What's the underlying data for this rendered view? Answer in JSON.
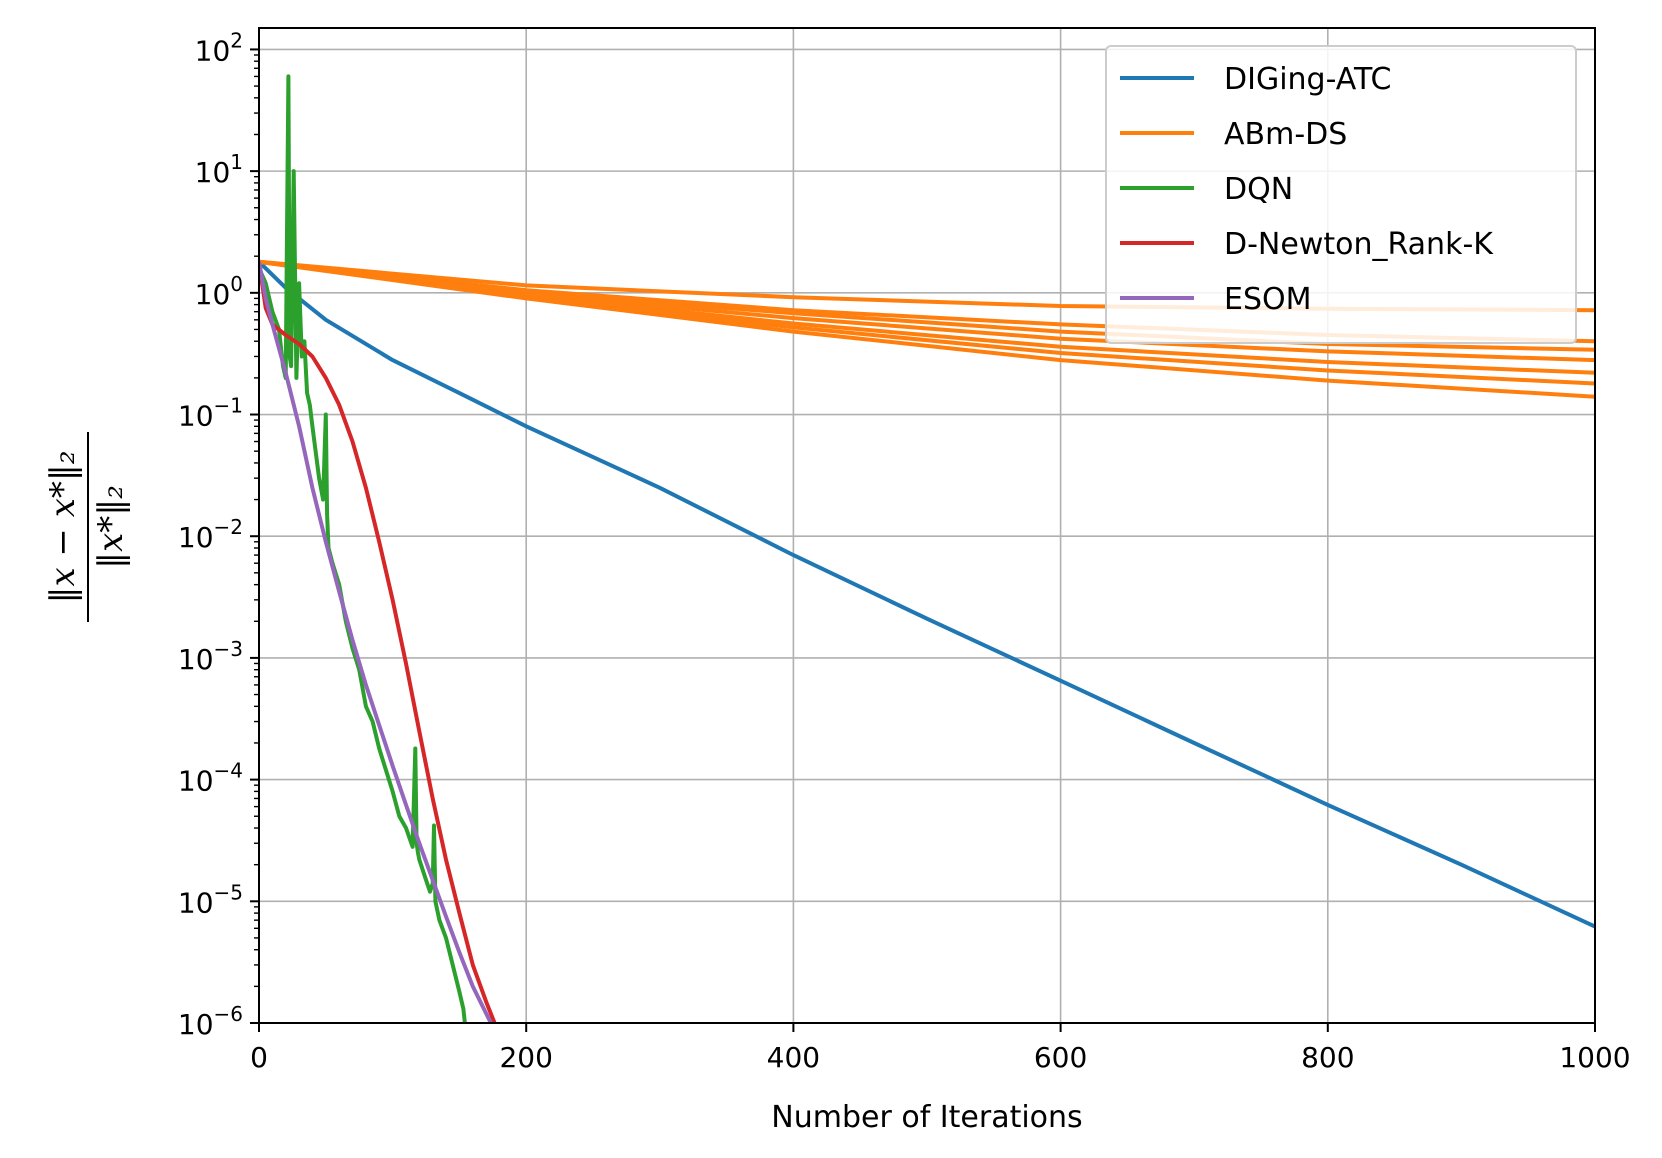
{
  "chart_data": {
    "type": "line",
    "title": "",
    "xlabel": "Number of Iterations",
    "ylabel_numerator": "‖x − x*‖₂",
    "ylabel_denominator": "‖x*‖₂",
    "xlim": [
      0,
      1000
    ],
    "ylim": [
      1e-06,
      150
    ],
    "yscale": "log",
    "grid": true,
    "legend_position": "top-right",
    "x_ticks": [
      {
        "value": 0,
        "label": "0"
      },
      {
        "value": 200,
        "label": "200"
      },
      {
        "value": 400,
        "label": "400"
      },
      {
        "value": 600,
        "label": "600"
      },
      {
        "value": 800,
        "label": "800"
      },
      {
        "value": 1000,
        "label": "1000"
      }
    ],
    "y_ticks": [
      {
        "value": 100.0,
        "base": "10",
        "exp": "2"
      },
      {
        "value": 10.0,
        "base": "10",
        "exp": "1"
      },
      {
        "value": 1.0,
        "base": "10",
        "exp": "0"
      },
      {
        "value": 0.1,
        "base": "10",
        "exp": "−1"
      },
      {
        "value": 0.01,
        "base": "10",
        "exp": "−2"
      },
      {
        "value": 0.001,
        "base": "10",
        "exp": "−3"
      },
      {
        "value": 0.0001,
        "base": "10",
        "exp": "−4"
      },
      {
        "value": 1e-05,
        "base": "10",
        "exp": "−5"
      },
      {
        "value": 1e-06,
        "base": "10",
        "exp": "−6"
      }
    ],
    "series": [
      {
        "name": "DIGing-ATC",
        "color": "#1f77b4",
        "x": [
          0,
          20,
          50,
          100,
          150,
          200,
          300,
          400,
          500,
          600,
          700,
          800,
          900,
          1000
        ],
        "y": [
          1.8,
          1.1,
          0.6,
          0.28,
          0.15,
          0.08,
          0.025,
          0.007,
          0.0021,
          0.00065,
          0.0002,
          6.2e-05,
          2e-05,
          6.2e-06
        ]
      },
      {
        "name": "ABm-DS",
        "color": "#ff7f0e",
        "lines": [
          {
            "x": [
              0,
              200,
              400,
              600,
              800,
              1000
            ],
            "y": [
              1.8,
              1.15,
              0.92,
              0.78,
              0.74,
              0.72
            ]
          },
          {
            "x": [
              0,
              200,
              400,
              600,
              800,
              1000
            ],
            "y": [
              1.8,
              1.05,
              0.72,
              0.55,
              0.45,
              0.4
            ]
          },
          {
            "x": [
              0,
              200,
              400,
              600,
              800,
              1000
            ],
            "y": [
              1.8,
              1.0,
              0.68,
              0.48,
              0.38,
              0.34
            ]
          },
          {
            "x": [
              0,
              200,
              400,
              600,
              800,
              1000
            ],
            "y": [
              1.8,
              0.98,
              0.62,
              0.42,
              0.33,
              0.28
            ]
          },
          {
            "x": [
              0,
              200,
              400,
              600,
              800,
              1000
            ],
            "y": [
              1.8,
              0.95,
              0.56,
              0.36,
              0.27,
              0.22
            ]
          },
          {
            "x": [
              0,
              200,
              400,
              600,
              800,
              1000
            ],
            "y": [
              1.8,
              0.92,
              0.52,
              0.32,
              0.23,
              0.18
            ]
          },
          {
            "x": [
              0,
              200,
              400,
              600,
              800,
              1000
            ],
            "y": [
              1.8,
              0.9,
              0.48,
              0.28,
              0.19,
              0.14
            ]
          }
        ]
      },
      {
        "name": "DQN",
        "color": "#2ca02c",
        "x": [
          0,
          5,
          10,
          15,
          18,
          20,
          22,
          23,
          24,
          26,
          28,
          30,
          32,
          34,
          36,
          38,
          40,
          45,
          48,
          50,
          51,
          52,
          55,
          60,
          65,
          70,
          75,
          80,
          85,
          90,
          95,
          100,
          105,
          110,
          115,
          117,
          118,
          119,
          120,
          125,
          128,
          130,
          131,
          132,
          135,
          140,
          145,
          150,
          153,
          155
        ],
        "y": [
          1.6,
          1.2,
          0.7,
          0.5,
          0.25,
          0.2,
          60,
          0.3,
          0.25,
          10,
          0.2,
          1.2,
          0.3,
          0.4,
          0.15,
          0.12,
          0.08,
          0.03,
          0.02,
          0.1,
          0.015,
          0.008,
          0.006,
          0.004,
          0.002,
          0.0012,
          0.0008,
          0.0004,
          0.0003,
          0.00018,
          0.00012,
          8e-05,
          5e-05,
          4e-05,
          2.8e-05,
          0.00018,
          3e-05,
          2.5e-05,
          2.2e-05,
          1.5e-05,
          1.2e-05,
          1.4e-05,
          4.2e-05,
          1e-05,
          7e-06,
          5e-06,
          3e-06,
          1.8e-06,
          1.3e-06,
          8e-07
        ]
      },
      {
        "name": "D-Newton_Rank-K",
        "color": "#d62728",
        "x": [
          0,
          5,
          10,
          20,
          30,
          40,
          50,
          60,
          70,
          80,
          90,
          100,
          110,
          120,
          130,
          140,
          150,
          160,
          170,
          178
        ],
        "y": [
          1.8,
          0.75,
          0.55,
          0.45,
          0.38,
          0.3,
          0.2,
          0.12,
          0.06,
          0.025,
          0.009,
          0.003,
          0.0009,
          0.00025,
          7e-05,
          2.2e-05,
          8e-06,
          3e-06,
          1.5e-06,
          9e-07
        ]
      },
      {
        "name": "ESOM",
        "color": "#9467bd",
        "x": [
          0,
          5,
          10,
          20,
          30,
          40,
          50,
          60,
          70,
          80,
          90,
          100,
          110,
          120,
          130,
          140,
          150,
          160,
          170,
          178
        ],
        "y": [
          1.8,
          0.9,
          0.55,
          0.22,
          0.08,
          0.025,
          0.009,
          0.0035,
          0.0014,
          0.0006,
          0.00028,
          0.00013,
          6.2e-05,
          3e-05,
          1.5e-05,
          7.5e-06,
          3.8e-06,
          2e-06,
          1.2e-06,
          8e-07
        ]
      }
    ]
  }
}
